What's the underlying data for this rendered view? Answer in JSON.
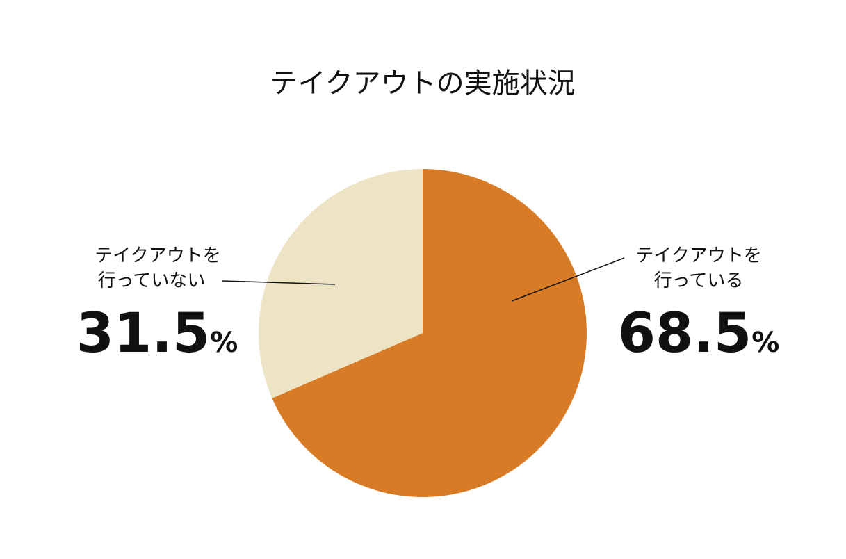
{
  "chart_data": {
    "type": "pie",
    "title": "テイクアウトの実施状況",
    "slices": [
      {
        "label_lines": [
          "テイクアウトを",
          "行っている"
        ],
        "value": 68.5,
        "value_text": "68.5",
        "unit": "%",
        "color": "#D87B26"
      },
      {
        "label_lines": [
          "テイクアウトを",
          "行っていない"
        ],
        "value": 31.5,
        "value_text": "31.5",
        "unit": "%",
        "color": "#EDE3C5"
      }
    ],
    "start_angle": "12 o'clock",
    "direction": "clockwise",
    "legend": "none"
  }
}
